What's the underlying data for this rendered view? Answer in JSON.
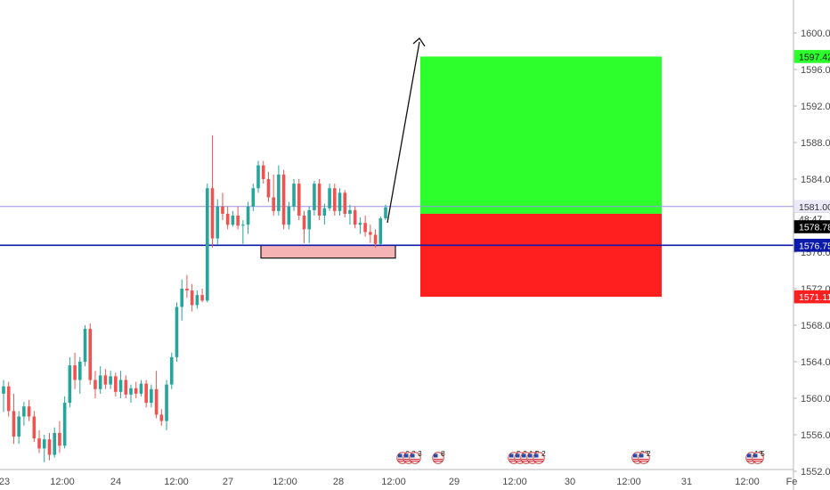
{
  "chart_data": {
    "type": "candlestick",
    "instrument_hint": "",
    "y_axis": {
      "range": [
        1552.5,
        1604.0
      ],
      "ticks": [
        "1600.00",
        "1596.00",
        "1592.00",
        "1588.00",
        "1584.00",
        "1580.00",
        "1576.00",
        "1572.00",
        "1568.00",
        "1564.00",
        "1560.00",
        "1556.00",
        "1552.00"
      ]
    },
    "x_axis": {
      "tick_labels": [
        "23",
        "12:00",
        "24",
        "12:00",
        "27",
        "12:00",
        "28",
        "12:00",
        "29",
        "12:00",
        "30",
        "12:00",
        "31",
        "12:00",
        "Fe"
      ]
    },
    "candles": [
      [
        1560.5,
        1562.0,
        1558.5,
        1561.3
      ],
      [
        1561.3,
        1561.8,
        1558.0,
        1558.6
      ],
      [
        1558.6,
        1560.5,
        1555.0,
        1555.8
      ],
      [
        1555.8,
        1558.6,
        1555.0,
        1558.0
      ],
      [
        1558.0,
        1559.6,
        1557.0,
        1559.1
      ],
      [
        1559.1,
        1559.8,
        1557.5,
        1558.0
      ],
      [
        1558.0,
        1558.6,
        1555.2,
        1555.6
      ],
      [
        1555.6,
        1556.5,
        1554.0,
        1554.5
      ],
      [
        1554.5,
        1556.0,
        1553.0,
        1555.5
      ],
      [
        1555.5,
        1556.2,
        1553.2,
        1553.8
      ],
      [
        1553.8,
        1556.8,
        1553.5,
        1556.2
      ],
      [
        1556.2,
        1557.5,
        1554.0,
        1554.8
      ],
      [
        1554.8,
        1560.2,
        1554.5,
        1559.5
      ],
      [
        1559.5,
        1564.5,
        1559.0,
        1563.6
      ],
      [
        1563.6,
        1565.0,
        1561.0,
        1562.0
      ],
      [
        1562.0,
        1564.5,
        1560.5,
        1564.0
      ],
      [
        1564.0,
        1568.0,
        1563.5,
        1567.6
      ],
      [
        1567.6,
        1568.2,
        1561.5,
        1562.0
      ],
      [
        1562.0,
        1563.0,
        1560.0,
        1561.0
      ],
      [
        1561.0,
        1563.5,
        1560.5,
        1562.5
      ],
      [
        1562.5,
        1563.2,
        1561.0,
        1561.5
      ],
      [
        1561.5,
        1563.0,
        1561.0,
        1562.4
      ],
      [
        1562.4,
        1562.8,
        1560.2,
        1560.7
      ],
      [
        1560.7,
        1563.0,
        1560.0,
        1562.0
      ],
      [
        1562.0,
        1562.5,
        1560.0,
        1560.4
      ],
      [
        1560.4,
        1561.5,
        1559.5,
        1561.1
      ],
      [
        1561.1,
        1561.8,
        1560.0,
        1560.5
      ],
      [
        1560.5,
        1562.0,
        1560.2,
        1561.6
      ],
      [
        1561.6,
        1562.0,
        1559.0,
        1559.5
      ],
      [
        1559.5,
        1561.5,
        1559.0,
        1561.0
      ],
      [
        1561.0,
        1563.0,
        1557.8,
        1558.2
      ],
      [
        1558.2,
        1558.8,
        1557.0,
        1557.5
      ],
      [
        1557.5,
        1562.0,
        1556.5,
        1561.5
      ],
      [
        1561.5,
        1565.0,
        1561.0,
        1564.5
      ],
      [
        1564.5,
        1570.5,
        1564.0,
        1570.0
      ],
      [
        1570.0,
        1573.0,
        1568.5,
        1572.0
      ],
      [
        1572.0,
        1573.5,
        1571.0,
        1571.8
      ],
      [
        1571.8,
        1572.5,
        1569.5,
        1570.2
      ],
      [
        1570.2,
        1571.8,
        1569.8,
        1571.3
      ],
      [
        1571.3,
        1572.0,
        1570.5,
        1570.7
      ],
      [
        1570.7,
        1583.5,
        1570.5,
        1583.0
      ],
      [
        1583.0,
        1588.8,
        1576.5,
        1577.5
      ],
      [
        1577.5,
        1581.8,
        1576.8,
        1581.0
      ],
      [
        1581.0,
        1582.5,
        1579.5,
        1580.2
      ],
      [
        1580.2,
        1581.0,
        1578.5,
        1579.0
      ],
      [
        1579.0,
        1580.5,
        1578.8,
        1580.0
      ],
      [
        1580.0,
        1581.0,
        1578.5,
        1578.9
      ],
      [
        1578.9,
        1579.5,
        1576.9,
        1579.0
      ],
      [
        1579.0,
        1581.5,
        1578.0,
        1581.0
      ],
      [
        1581.0,
        1583.5,
        1580.5,
        1583.0
      ],
      [
        1583.0,
        1586.0,
        1582.5,
        1585.5
      ],
      [
        1585.5,
        1586.0,
        1583.5,
        1584.0
      ],
      [
        1584.0,
        1584.8,
        1581.5,
        1582.0
      ],
      [
        1582.0,
        1584.5,
        1580.0,
        1580.5
      ],
      [
        1580.5,
        1585.5,
        1580.0,
        1584.5
      ],
      [
        1584.5,
        1585.0,
        1578.5,
        1579.0
      ],
      [
        1579.0,
        1581.5,
        1578.5,
        1581.0
      ],
      [
        1581.0,
        1584.0,
        1580.5,
        1583.5
      ],
      [
        1583.5,
        1584.0,
        1579.5,
        1580.0
      ],
      [
        1580.0,
        1580.5,
        1577.0,
        1578.5
      ],
      [
        1578.5,
        1581.0,
        1577.0,
        1580.6
      ],
      [
        1580.6,
        1583.8,
        1580.0,
        1583.5
      ],
      [
        1583.5,
        1584.0,
        1579.5,
        1580.0
      ],
      [
        1580.0,
        1581.3,
        1579.0,
        1580.8
      ],
      [
        1580.8,
        1583.5,
        1580.5,
        1583.0
      ],
      [
        1583.0,
        1583.5,
        1580.0,
        1580.5
      ],
      [
        1580.5,
        1583.0,
        1580.0,
        1582.5
      ],
      [
        1582.5,
        1582.8,
        1579.8,
        1580.2
      ],
      [
        1580.2,
        1581.2,
        1579.0,
        1580.6
      ],
      [
        1580.6,
        1581.0,
        1578.6,
        1579.0
      ],
      [
        1579.0,
        1579.8,
        1578.0,
        1579.2
      ],
      [
        1579.2,
        1580.0,
        1577.7,
        1578.2
      ],
      [
        1578.2,
        1579.0,
        1577.0,
        1577.9
      ],
      [
        1577.9,
        1578.5,
        1576.5,
        1576.9
      ],
      [
        1576.9,
        1579.9,
        1576.8,
        1579.7
      ],
      [
        1579.7,
        1581.2,
        1579.5,
        1580.9
      ]
    ],
    "x_labels_extra": [],
    "horizontal_lines": [
      {
        "price": 1581.0,
        "color": "#9c92e6"
      },
      {
        "price": 1576.75,
        "color": "#0b1aa8"
      }
    ],
    "zones": [
      {
        "kind": "target",
        "from": 1580.2,
        "to": 1597.42,
        "color": "#2cff2c"
      },
      {
        "kind": "stop",
        "from": 1571.11,
        "to": 1580.2,
        "color": "#ff1f1f"
      },
      {
        "kind": "demand-box",
        "from": 1575.35,
        "to": 1576.75,
        "color": "#f6b3b3"
      }
    ],
    "price_tags": [
      {
        "label": "1597.42",
        "price": 1597.42,
        "bg": "#2cff2c",
        "fg": "#111111"
      },
      {
        "label": "1581.00",
        "price": 1581.0,
        "bg": "#ece9fb",
        "fg": "#333333"
      },
      {
        "label": "48:47",
        "price": 1579.65,
        "bg": "#ffffff",
        "fg": "#333333"
      },
      {
        "label": "1578.78",
        "price": 1578.78,
        "bg": "#000000",
        "fg": "#ffffff"
      },
      {
        "label": "1576.75",
        "price": 1576.75,
        "bg": "#0b1aa8",
        "fg": "#ffffff"
      },
      {
        "label": "1571.11",
        "price": 1571.11,
        "bg": "#ff1f1f",
        "fg": "#ffffff"
      }
    ],
    "event_markers": [
      {
        "label": "6",
        "group": 1
      },
      {
        "label": "3",
        "group": 1
      },
      {
        "label": "3",
        "group": 1
      },
      {
        "label": "8",
        "group": 2
      },
      {
        "label": "5",
        "group": 3
      },
      {
        "label": "2",
        "group": 3
      },
      {
        "label": "14",
        "group": 3
      },
      {
        "label": "2",
        "group": 3
      },
      {
        "label": "2",
        "group": 3
      },
      {
        "label": "33",
        "group": 4
      },
      {
        "label": "2",
        "group": 4
      },
      {
        "label": "10",
        "group": 5
      },
      {
        "label": "5",
        "group": 5
      }
    ]
  }
}
